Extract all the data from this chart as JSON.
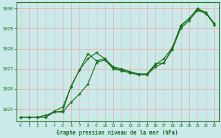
{
  "title": "Graphe pression niveau de la mer (hPa)",
  "bg_color": "#caeaea",
  "plot_bg_color": "#caeaea",
  "grid_color": "#e8b8b8",
  "line_color": "#1a6e1a",
  "xlim": [
    -0.5,
    23.5
  ],
  "ylim": [
    1024.4,
    1030.3
  ],
  "xticks": [
    0,
    1,
    2,
    3,
    4,
    5,
    6,
    7,
    8,
    9,
    10,
    11,
    12,
    13,
    14,
    15,
    16,
    17,
    18,
    19,
    20,
    21,
    22,
    23
  ],
  "yticks": [
    1025,
    1026,
    1027,
    1028,
    1029,
    1030
  ],
  "series1_x": [
    0,
    1,
    2,
    3,
    4,
    5,
    6,
    7,
    8,
    9,
    10,
    11,
    12,
    13,
    14,
    15,
    16,
    17,
    18,
    19,
    20,
    21,
    22,
    23
  ],
  "series1_y": [
    1024.6,
    1024.6,
    1024.6,
    1024.6,
    1024.9,
    1025.1,
    1026.1,
    1026.95,
    1027.75,
    1027.4,
    1027.5,
    1027.1,
    1027.0,
    1026.85,
    1026.75,
    1026.75,
    1027.25,
    1027.3,
    1028.0,
    1029.15,
    1029.5,
    1029.95,
    1029.8,
    1029.25
  ],
  "series2_x": [
    0,
    1,
    2,
    3,
    4,
    5,
    6,
    7,
    8,
    9,
    10,
    11,
    12,
    13,
    14,
    15,
    16,
    17,
    18,
    19,
    20,
    21,
    22,
    23
  ],
  "series2_y": [
    1024.6,
    1024.6,
    1024.6,
    1024.7,
    1024.85,
    1024.85,
    1025.35,
    1025.75,
    1026.25,
    1027.3,
    1027.45,
    1027.0,
    1026.9,
    1026.8,
    1026.7,
    1026.7,
    1027.1,
    1027.3,
    1027.95,
    1029.0,
    1029.4,
    1029.9,
    1029.75,
    1029.2
  ],
  "series3_x": [
    0,
    1,
    2,
    3,
    4,
    5,
    6,
    7,
    8,
    9,
    10,
    11,
    12,
    13,
    14,
    15,
    16,
    17,
    18,
    19,
    20,
    21,
    22,
    23
  ],
  "series3_y": [
    1024.6,
    1024.6,
    1024.6,
    1024.6,
    1024.85,
    1024.9,
    1026.15,
    1026.95,
    1027.5,
    1027.8,
    1027.5,
    1027.05,
    1026.95,
    1026.85,
    1026.7,
    1026.7,
    1027.2,
    1027.5,
    1028.05,
    1029.1,
    1029.5,
    1030.0,
    1029.8,
    1029.2
  ]
}
